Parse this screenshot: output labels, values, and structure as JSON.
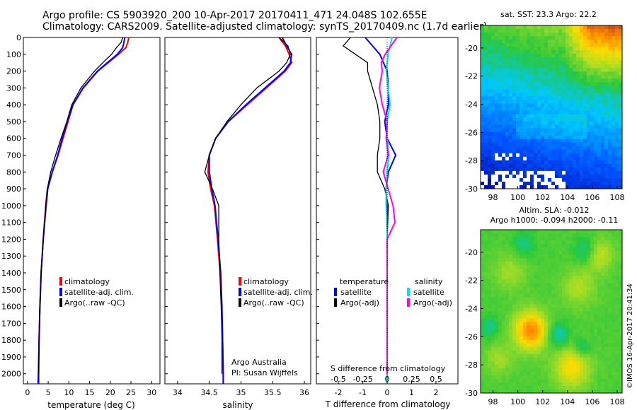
{
  "header": {
    "line1": "Argo profile: CS 5903920_200 10-Apr-2017 20170411_471 24.048S 102.655E",
    "line2": "Climatology: CARS2009. Satellite-adjusted climatology: synTS_20170409.nc (1.7d earlier)"
  },
  "colors": {
    "climatology": "#ff0000",
    "satellite": "#0000ff",
    "argo": "#000000",
    "salinity_sat": "#00e5ee",
    "salinity_argo": "#ff00ff"
  },
  "chart_data": [
    {
      "type": "line",
      "xlabel": "temperature (deg C)",
      "x_ticks": [
        0,
        5,
        10,
        15,
        20,
        25,
        30
      ],
      "xlim": [
        -1,
        32
      ],
      "y_ticks": [
        0,
        100,
        200,
        300,
        400,
        500,
        600,
        700,
        800,
        900,
        1000,
        1100,
        1200,
        1300,
        1400,
        1500,
        1600,
        1700,
        1800,
        1900,
        2000
      ],
      "ylim": [
        2060,
        0
      ],
      "legend": [
        "climatology",
        "satellite-adj. clim.",
        "Argo(..raw -QC)"
      ],
      "series": [
        {
          "name": "climatology",
          "depth": [
            0,
            30,
            60,
            100,
            150,
            200,
            300,
            400,
            500,
            600,
            700,
            800,
            900,
            1000,
            1200,
            1400,
            1600,
            1800,
            2000,
            2060
          ],
          "values": [
            24.5,
            24.2,
            23.8,
            22.0,
            19.5,
            17.0,
            13.5,
            11.0,
            9.8,
            8.6,
            7.4,
            6.0,
            4.8,
            4.4,
            3.8,
            3.3,
            3.0,
            2.8,
            2.6,
            2.5
          ]
        },
        {
          "name": "satellite-adj. clim.",
          "depth": [
            0,
            30,
            60,
            100,
            150,
            200,
            300,
            400,
            500,
            600,
            700,
            800,
            900,
            1000,
            1200,
            1400,
            1600,
            1800,
            2000,
            2060
          ],
          "values": [
            23.5,
            23.3,
            23.0,
            21.7,
            19.3,
            16.9,
            13.4,
            11.0,
            9.6,
            8.4,
            7.3,
            6.0,
            4.9,
            4.5,
            3.8,
            3.3,
            3.0,
            2.8,
            2.7,
            2.7
          ]
        },
        {
          "name": "Argo(..raw -QC)",
          "depth": [
            0,
            30,
            60,
            100,
            150,
            200,
            300,
            400,
            500,
            600,
            700,
            800,
            900,
            1000,
            1200,
            1400,
            1600,
            1800,
            2000
          ],
          "values": [
            23.0,
            22.6,
            21.5,
            20.3,
            18.2,
            16.2,
            12.9,
            10.7,
            9.5,
            8.1,
            6.8,
            5.6,
            4.8,
            4.4,
            3.8,
            3.3,
            3.0,
            2.8,
            2.7
          ]
        }
      ]
    },
    {
      "type": "line",
      "xlabel": "salinity",
      "x_ticks": [
        34,
        34.5,
        35,
        35.5,
        36
      ],
      "xlim": [
        33.8,
        36.1
      ],
      "ylim": [
        2060,
        0
      ],
      "legend": [
        "climatology",
        "satellite-adj. clim.",
        "Argo(..raw -QC)"
      ],
      "annotation": [
        "Argo Australia",
        "PI: Susan Wijffels"
      ],
      "series": [
        {
          "name": "climatology",
          "depth": [
            0,
            50,
            100,
            150,
            200,
            300,
            400,
            500,
            600,
            700,
            800,
            900,
            1000,
            1200,
            1400,
            1600,
            1800,
            2000,
            2060
          ],
          "values": [
            35.6,
            35.7,
            35.76,
            35.8,
            35.7,
            35.4,
            35.1,
            34.8,
            34.6,
            34.5,
            34.48,
            34.52,
            34.58,
            34.63,
            34.67,
            34.69,
            34.71,
            34.72,
            34.72
          ]
        },
        {
          "name": "satellite-adj. clim.",
          "depth": [
            0,
            50,
            100,
            150,
            200,
            300,
            400,
            500,
            600,
            700,
            800,
            900,
            1000,
            1200,
            1400,
            1600,
            1800,
            2000,
            2060
          ],
          "values": [
            35.65,
            35.72,
            35.8,
            35.78,
            35.68,
            35.38,
            35.08,
            34.8,
            34.6,
            34.5,
            34.5,
            34.54,
            34.59,
            34.64,
            34.68,
            34.7,
            34.71,
            34.72,
            34.72
          ]
        },
        {
          "name": "Argo(..raw -QC)",
          "depth": [
            0,
            50,
            100,
            150,
            200,
            300,
            400,
            500,
            600,
            700,
            800,
            900,
            1000,
            1200,
            1400,
            1600,
            1800,
            2000
          ],
          "values": [
            35.6,
            35.74,
            35.78,
            35.72,
            35.6,
            35.25,
            35.0,
            34.78,
            34.6,
            34.5,
            34.43,
            34.55,
            34.65,
            34.65,
            34.67,
            34.69,
            34.7,
            34.7
          ]
        }
      ]
    },
    {
      "type": "line",
      "xlabel": "T difference from climatology",
      "x_ticks": [
        -2,
        -1,
        0,
        1,
        2
      ],
      "x_ticklabels": [
        "-2",
        "-1",
        "0",
        "1",
        "2"
      ],
      "top_xlabel": "S difference from climatology",
      "top_ticks": [
        -0.5,
        -0.25,
        0,
        0.25,
        0.5
      ],
      "top_ticklabels": [
        "-0.5",
        "-0.25",
        "0",
        "0.25",
        "0.5"
      ],
      "xlim": [
        -2.9,
        2.9
      ],
      "ylim": [
        2060,
        0
      ],
      "legend_headers": [
        "temperature",
        "salinity"
      ],
      "legend": [
        "satellite",
        "Argo(-adj)",
        "satellite",
        "Argo(-adj)"
      ],
      "series": [
        {
          "name": "satellite",
          "quantity": "temperature",
          "depth": [
            0,
            50,
            100,
            150,
            200,
            300,
            400,
            500,
            600,
            700,
            800,
            900,
            1000,
            1200,
            1400,
            1600,
            1800,
            2000,
            2060
          ],
          "values": [
            -0.9,
            -0.6,
            -0.3,
            -0.15,
            0.0,
            0.05,
            0.05,
            -0.1,
            0.0,
            0.35,
            0.05,
            -0.05,
            0.0,
            0.0,
            0.0,
            0.0,
            0.0,
            0.0,
            0.0
          ]
        },
        {
          "name": "Argo(-adj)",
          "quantity": "temperature",
          "depth": [
            0,
            50,
            100,
            150,
            200,
            300,
            400,
            500,
            600,
            700,
            800,
            900,
            1000,
            1200,
            1400,
            1600,
            1800,
            2000
          ],
          "values": [
            -1.5,
            -1.8,
            -1.3,
            -0.8,
            -0.8,
            -0.6,
            -0.4,
            -0.3,
            -0.3,
            -0.4,
            -0.4,
            -0.1,
            0.05,
            0.0,
            0.0,
            0.0,
            0.0,
            0.0
          ]
        },
        {
          "name": "satellite",
          "quantity": "salinity",
          "depth": [
            0,
            50,
            100,
            150,
            200,
            300,
            400,
            500,
            600,
            700,
            800,
            900,
            1000,
            1200,
            1400,
            1600,
            1800,
            2000,
            2060
          ],
          "values": [
            0.05,
            0.03,
            0.01,
            0.0,
            -0.01,
            0.01,
            0.03,
            0.0,
            0.0,
            0.02,
            0.0,
            -0.01,
            -0.01,
            0.0,
            0.0,
            0.0,
            0.0,
            0.0,
            0.0
          ]
        },
        {
          "name": "Argo(-adj)",
          "quantity": "salinity",
          "depth": [
            0,
            50,
            100,
            150,
            200,
            300,
            400,
            500,
            600,
            700,
            800,
            900,
            1000,
            1100,
            1200,
            1400,
            1600,
            1800,
            2000
          ],
          "values": [
            0.1,
            0.04,
            -0.02,
            -0.06,
            -0.05,
            -0.08,
            -0.05,
            0.0,
            -0.01,
            0.01,
            -0.04,
            0.01,
            0.06,
            0.08,
            0.0,
            0.0,
            0.0,
            0.0,
            0.0
          ]
        }
      ]
    },
    {
      "type": "heatmap",
      "title": "sat. SST: 23.3 Argo: 22.2",
      "x_ticks": [
        98,
        100,
        102,
        104,
        106,
        108
      ],
      "xlim": [
        97,
        108.4
      ],
      "y_ticks": [
        -20,
        -22,
        -24,
        -26,
        -28,
        -30
      ],
      "ylim": [
        -30,
        -18.4
      ]
    },
    {
      "type": "heatmap",
      "title_lines": [
        "Altim. SLA: -0.012",
        "Argo h1000: -0.094 h2000: -0.11"
      ],
      "x_ticks": [
        98,
        100,
        102,
        104,
        106,
        108
      ],
      "xlim": [
        97,
        108.4
      ],
      "y_ticks": [
        -20,
        -22,
        -24,
        -26,
        -28,
        -30
      ],
      "ylim": [
        -30,
        -18.4
      ],
      "side_text": "©IMOS 16-Apr-2017 20:41:34"
    }
  ]
}
